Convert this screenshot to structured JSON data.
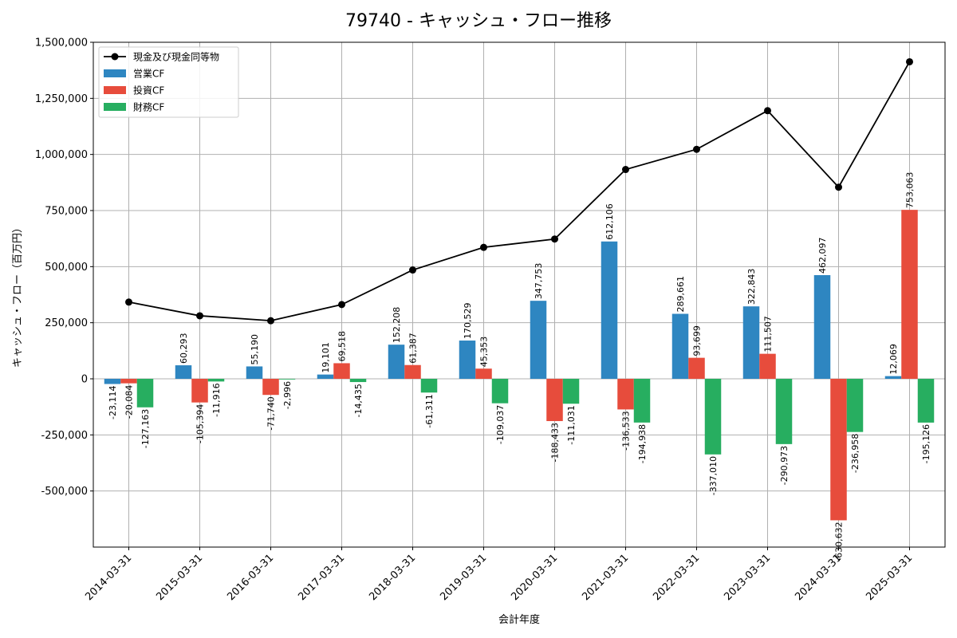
{
  "chart_data": {
    "type": "bar",
    "title": "79740 - キャッシュ・フロー推移",
    "xlabel": "会計年度",
    "ylabel": "キャッシュ・フロー（百万円）",
    "ylim": [
      -750000,
      1500000
    ],
    "yticks": [
      -500000,
      -250000,
      0,
      250000,
      500000,
      750000,
      1000000,
      1250000,
      1500000
    ],
    "ytick_labels": [
      "-500,000",
      "-250,000",
      "0",
      "250,000",
      "500,000",
      "750,000",
      "1,000,000",
      "1,250,000",
      "1,500,000"
    ],
    "grid": true,
    "legend_position": "top-left",
    "categories": [
      "2014-03-31",
      "2015-03-31",
      "2016-03-31",
      "2017-03-31",
      "2018-03-31",
      "2019-03-31",
      "2020-03-31",
      "2021-03-31",
      "2022-03-31",
      "2023-03-31",
      "2024-03-31",
      "2025-03-31"
    ],
    "series": [
      {
        "name": "営業CF",
        "kind": "bar",
        "color": "#2e86c1",
        "values": [
          -23114,
          60293,
          55190,
          19101,
          152208,
          170529,
          347753,
          612106,
          289661,
          322843,
          462097,
          12069
        ],
        "labels": [
          "-23,114",
          "60,293",
          "55,190",
          "19,101",
          "152,208",
          "170,529",
          "347,753",
          "612,106",
          "289,661",
          "322,843",
          "462,097",
          "12,069"
        ]
      },
      {
        "name": "投資CF",
        "kind": "bar",
        "color": "#e74c3c",
        "values": [
          -20084,
          -105394,
          -71740,
          69518,
          61387,
          45353,
          -188433,
          -136533,
          93699,
          111507,
          -630632,
          753063
        ],
        "labels": [
          "-20,084",
          "-105,394",
          "-71,740",
          "69,518",
          "61,387",
          "45,353",
          "-188,433",
          "-136,533",
          "93,699",
          "111,507",
          "-630,632",
          "753,063"
        ]
      },
      {
        "name": "財務CF",
        "kind": "bar",
        "color": "#27ae60",
        "values": [
          -127163,
          -11916,
          -2996,
          -14435,
          -61311,
          -109037,
          -111031,
          -194938,
          -337010,
          -290973,
          -236958,
          -195126
        ],
        "labels": [
          "-127,163",
          "-11,916",
          "-2,996",
          "-14,435",
          "-61,311",
          "-109,037",
          "-111,031",
          "-194,938",
          "-337,010",
          "-290,973",
          "-236,958",
          "-195,126"
        ]
      },
      {
        "name": "現金及び現金同等物",
        "kind": "line",
        "color": "#000000",
        "values": [
          342000,
          281000,
          259000,
          331000,
          485000,
          586000,
          623000,
          933000,
          1023000,
          1195000,
          854000,
          1413000
        ]
      }
    ]
  }
}
